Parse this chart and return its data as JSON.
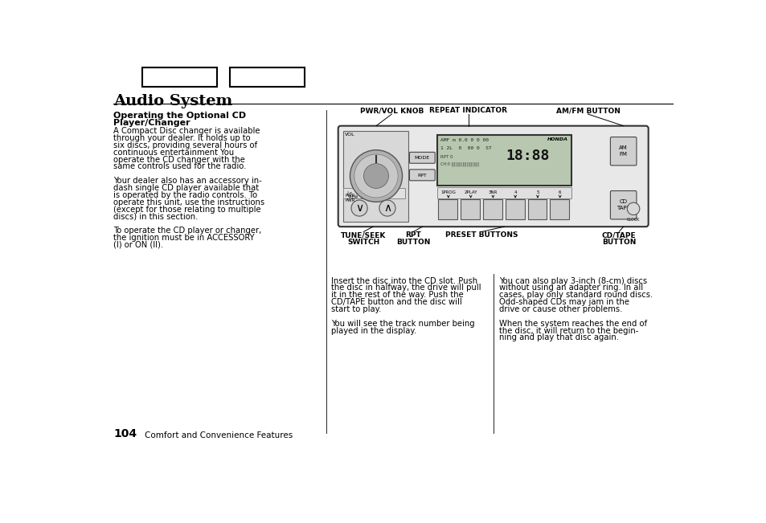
{
  "title": "Audio System",
  "page_num": "104",
  "page_label": "Comfort and Convenience Features",
  "heading_line1": "Operating the Optional CD",
  "heading_line2": "Player/Changer",
  "left_col_text": [
    "A Compact Disc changer is available",
    "through your dealer. It holds up to",
    "six discs, providing several hours of",
    "continuous entertainment You",
    "operate the CD changer with the",
    "same controls used for the radio.",
    "",
    "Your dealer also has an accessory in-",
    "dash single CD player available that",
    "is operated by the radio controls. To",
    "operate this unit, use the instructions",
    "(except for those relating to multiple",
    "discs) in this section.",
    "",
    "To operate the CD player or changer,",
    "the ignition must be in ACCESSORY",
    "(I) or ON (II)."
  ],
  "mid_col_text": [
    "Insert the disc into the CD slot. Push",
    "the disc in halfway, the drive will pull",
    "it in the rest of the way. Push the",
    "CD/TAPE button and the disc will",
    "start to play.",
    "",
    "You will see the track number being",
    "played in the display."
  ],
  "right_col_text": [
    "You can also play 3-inch (8-cm) discs",
    "without using an adapter ring. In all",
    "cases, play only standard round discs.",
    "Odd-shaped CDs may jam in the",
    "drive or cause other problems.",
    "",
    "When the system reaches the end of",
    "the disc, it will return to the begin-",
    "ning and play that disc again."
  ],
  "bg_color": "#ffffff",
  "text_color": "#000000"
}
